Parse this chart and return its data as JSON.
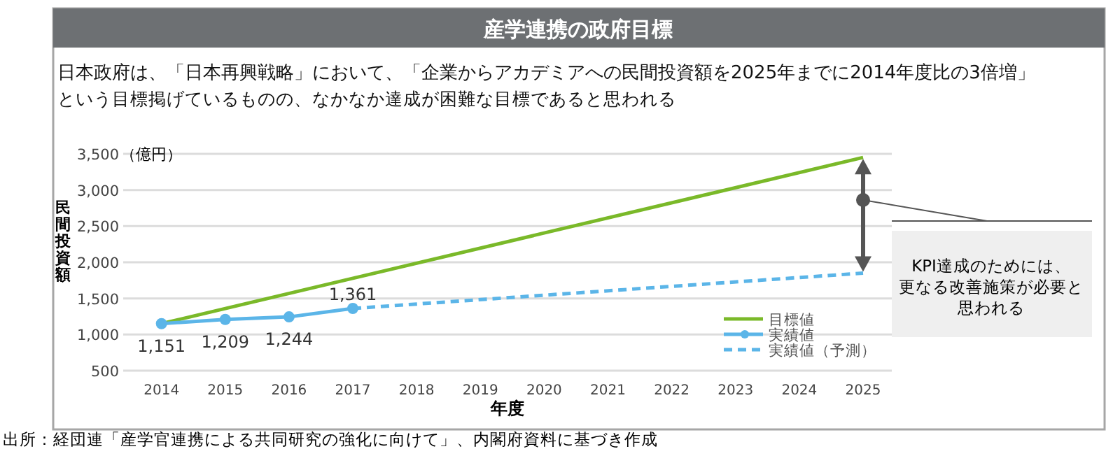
{
  "chart_data": {
    "type": "line",
    "title": "産学連携の政府目標",
    "subtitle": "日本政府は、「日本再興戦略」において、「企業からアカデミアへの民間投資額を2025年までに2014年度比の3倍増」",
    "xlabel": "年度",
    "ylabel": "民間投資額",
    "annotations": [
      "（億円）",
      "という目標掲げているものの、なかなか達成が困難な目標であると思われる",
      "KPI達成のためには、",
      "更なる改善施策が必要と",
      "思われる",
      "出所：経団連「産学官連携による共同研究の強化に向けて」、内閣府資料に基づき作成"
    ],
    "xlim": [
      2013.4,
      2025.45
    ],
    "xticks": [
      2014,
      2015,
      2016,
      2017,
      2018,
      2019,
      2020,
      2021,
      2022,
      2023,
      2024,
      2025
    ],
    "ylim": [
      500,
      3500
    ],
    "yticks": [
      {
        "value": 500,
        "label": "500"
      },
      {
        "value": 1000,
        "label": "1,000"
      },
      {
        "value": 1500,
        "label": "1,500"
      },
      {
        "value": 2000,
        "label": "2,000"
      },
      {
        "value": 2500,
        "label": "2,500"
      },
      {
        "value": 3000,
        "label": "3,000"
      },
      {
        "value": 3500,
        "label": "3,500"
      }
    ],
    "grid": "y",
    "legend": "bottom right",
    "series": [
      {
        "name": "目標値",
        "color": "#7ab929",
        "x": [
          2014,
          2025
        ],
        "values": [
          1151,
          3450
        ],
        "marker": "none",
        "line_style": "solid"
      },
      {
        "name": "実績値",
        "color": "#5bb5e8",
        "x": [
          2014,
          2015,
          2016,
          2017
        ],
        "values": [
          1151,
          1209,
          1244,
          1361
        ],
        "marker": "circle",
        "line_style": "solid",
        "value_labels": [
          "1,151",
          "1,209",
          "1,244",
          "1,361"
        ]
      },
      {
        "name": "実績値（予測）",
        "color": "#5bb5e8",
        "x": [
          2017,
          2025
        ],
        "values": [
          1361,
          1850
        ],
        "marker": "none",
        "line_style": "dashed"
      }
    ]
  }
}
